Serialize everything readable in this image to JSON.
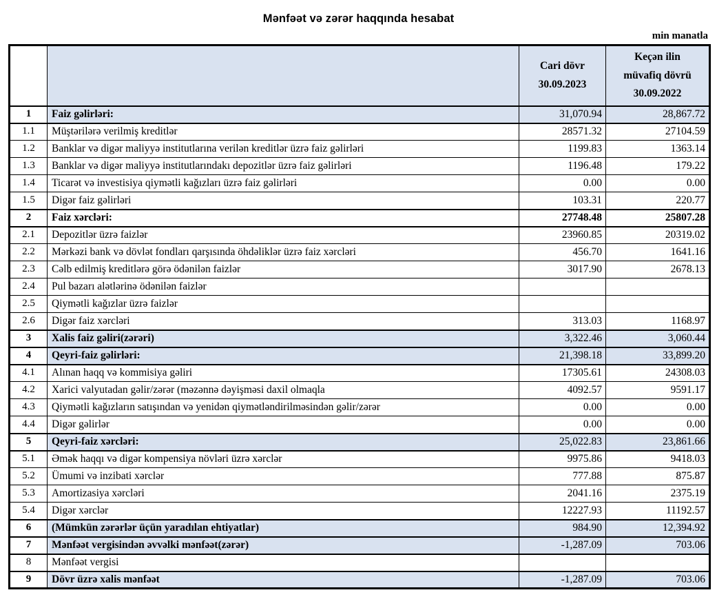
{
  "title": "Mənfəət və zərər haqqında hesabat",
  "unit_note": "min manatla",
  "colors": {
    "highlight_row": "#d9e2f0",
    "border": "#000000",
    "text": "#000000"
  },
  "table": {
    "columns": {
      "number": "",
      "description": "",
      "current_period": "Cari dövr\n30.09.2023",
      "previous_period": "Keçən ilin\nmüvafiq dövrü\n30.09.2022"
    },
    "rows": [
      {
        "no": "1",
        "label": "Faiz gəlirləri:",
        "current": "31,070.94",
        "previous": "28,867.72",
        "section": true,
        "highlight": true,
        "bold": true,
        "bold_values": false
      },
      {
        "no": "1.1",
        "label": "Müştərilərə verilmiş kreditlər",
        "current": "28571.32",
        "previous": "27104.59",
        "section": false,
        "highlight": false,
        "bold": false,
        "bold_values": false
      },
      {
        "no": "1.2",
        "label": "Banklar və digər maliyyə institutlarına verilən kreditlər üzrə faiz gəlirləri",
        "current": "1199.83",
        "previous": "1363.14",
        "section": false,
        "highlight": false,
        "bold": false,
        "bold_values": false
      },
      {
        "no": "1.3",
        "label": "Banklar və digər maliyyə institutlarındakı depozitlər üzrə faiz gəlirləri",
        "current": "1196.48",
        "previous": "179.22",
        "section": false,
        "highlight": false,
        "bold": false,
        "bold_values": false
      },
      {
        "no": "1.4",
        "label": "Ticarət və investisiya qiymətli kağızları üzrə faiz gəlirləri",
        "current": "0.00",
        "previous": "0.00",
        "section": false,
        "highlight": false,
        "bold": false,
        "bold_values": false
      },
      {
        "no": "1.5",
        "label": "Digər faiz gəlirləri",
        "current": "103.31",
        "previous": "220.77",
        "section": false,
        "highlight": false,
        "bold": false,
        "bold_values": false
      },
      {
        "no": "2",
        "label": "Faiz xərcləri:",
        "current": "27748.48",
        "previous": "25807.28",
        "section": true,
        "highlight": false,
        "bold": true,
        "bold_values": true
      },
      {
        "no": "2.1",
        "label": "Depozitlər üzrə faizlər",
        "current": "23960.85",
        "previous": "20319.02",
        "section": false,
        "highlight": false,
        "bold": false,
        "bold_values": false
      },
      {
        "no": "2.2",
        "label": "Mərkəzi bank və dövlət fondları qarşısında öhdəliklər üzrə faiz xərcləri",
        "current": "456.70",
        "previous": "1641.16",
        "section": false,
        "highlight": false,
        "bold": false,
        "bold_values": false
      },
      {
        "no": "2.3",
        "label": "Cəlb edilmiş kreditlərə görə ödənilən faizlər",
        "current": "3017.90",
        "previous": "2678.13",
        "section": false,
        "highlight": false,
        "bold": false,
        "bold_values": false
      },
      {
        "no": "2.4",
        "label": "Pul bazarı alətlərinə ödənilən faizlər",
        "current": "",
        "previous": "",
        "section": false,
        "highlight": false,
        "bold": false,
        "bold_values": false
      },
      {
        "no": "2.5",
        "label": "Qiymətli kağızlar üzrə faizlər",
        "current": "",
        "previous": "",
        "section": false,
        "highlight": false,
        "bold": false,
        "bold_values": false
      },
      {
        "no": "2.6",
        "label": "Digər faiz xərcləri",
        "current": "313.03",
        "previous": "1168.97",
        "section": false,
        "highlight": false,
        "bold": false,
        "bold_values": false
      },
      {
        "no": "3",
        "label": "Xalis faiz gəliri(zərəri)",
        "current": "3,322.46",
        "previous": "3,060.44",
        "section": true,
        "highlight": true,
        "bold": true,
        "bold_values": false
      },
      {
        "no": "4",
        "label": "Qeyri-faiz gəlirləri:",
        "current": "21,398.18",
        "previous": "33,899.20",
        "section": true,
        "highlight": true,
        "bold": true,
        "bold_values": false
      },
      {
        "no": "4.1",
        "label": "Alınan haqq və kommisiya gəliri",
        "current": "17305.61",
        "previous": "24308.03",
        "section": false,
        "highlight": false,
        "bold": false,
        "bold_values": false
      },
      {
        "no": "4.2",
        "label": "Xarici valyutadan gəlir/zərər (məzənnə dəyişməsi daxil olmaqla",
        "current": "4092.57",
        "previous": "9591.17",
        "section": false,
        "highlight": false,
        "bold": false,
        "bold_values": false
      },
      {
        "no": "4.3",
        "label": "Qiymətli kağızların satışından və yenidən qiymətləndirilməsindən gəlir/zərər",
        "current": "0.00",
        "previous": "0.00",
        "section": false,
        "highlight": false,
        "bold": false,
        "bold_values": false
      },
      {
        "no": "4.4",
        "label": "Digər gəlirlər",
        "current": "0.00",
        "previous": "0.00",
        "section": false,
        "highlight": false,
        "bold": false,
        "bold_values": false
      },
      {
        "no": "5",
        "label": "Qeyri-faiz xərcləri:",
        "current": "25,022.83",
        "previous": "23,861.66",
        "section": true,
        "highlight": true,
        "bold": true,
        "bold_values": false
      },
      {
        "no": "5.1",
        "label": "Əmək haqqı və digər kompensiya növləri üzrə xərclər",
        "current": "9975.86",
        "previous": "9418.03",
        "section": false,
        "highlight": false,
        "bold": false,
        "bold_values": false
      },
      {
        "no": "5.2",
        "label": "Ümumi və inzibati xərclər",
        "current": "777.88",
        "previous": "875.87",
        "section": false,
        "highlight": false,
        "bold": false,
        "bold_values": false
      },
      {
        "no": "5.3",
        "label": "Amortizasiya xərcləri",
        "current": "2041.16",
        "previous": "2375.19",
        "section": false,
        "highlight": false,
        "bold": false,
        "bold_values": false
      },
      {
        "no": "5.4",
        "label": "Digər xərclər",
        "current": "12227.93",
        "previous": "11192.57",
        "section": false,
        "highlight": false,
        "bold": false,
        "bold_values": false
      },
      {
        "no": "6",
        "label": "(Mümkün zərərlər üçün yaradılan ehtiyatlar)",
        "current": "984.90",
        "previous": "12,394.92",
        "section": true,
        "highlight": true,
        "bold": true,
        "bold_values": false
      },
      {
        "no": "7",
        "label": "Mənfəət vergisindən əvvəlki mənfəət(zərər)",
        "current": "-1,287.09",
        "previous": "703.06",
        "section": true,
        "highlight": true,
        "bold": true,
        "bold_values": false
      },
      {
        "no": "8",
        "label": "Mənfəət vergisi",
        "current": "",
        "previous": "",
        "section": true,
        "highlight": false,
        "bold": false,
        "bold_values": false
      },
      {
        "no": "9",
        "label": "Dövr üzrə xalis mənfəət",
        "current": "-1,287.09",
        "previous": "703.06",
        "section": true,
        "highlight": true,
        "bold": true,
        "bold_values": false
      }
    ]
  }
}
